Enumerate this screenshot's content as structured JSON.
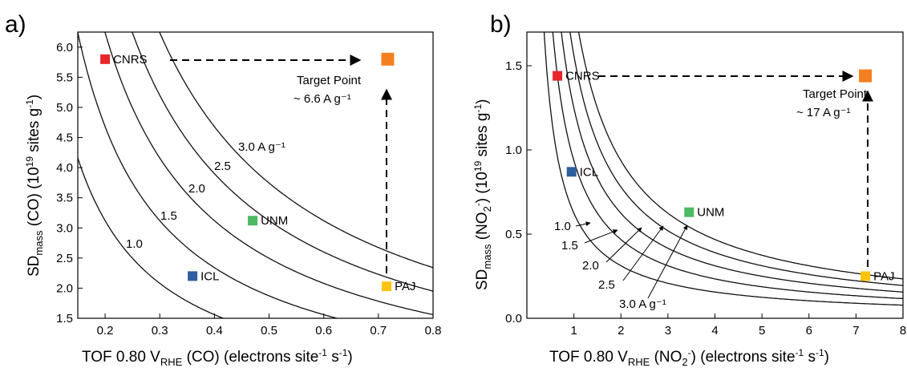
{
  "chart_data": [
    {
      "type": "scatter",
      "panel": "a)",
      "xlabel": "TOF 0.80 V_RHE (CO) (electrons site⁻¹ s⁻¹)",
      "ylabel": "SD_mass (CO) (10¹⁹ sites g⁻¹)",
      "xlim": [
        0.15,
        0.8
      ],
      "ylim": [
        1.5,
        6.25
      ],
      "x_ticks": [
        "0.2",
        "0.3",
        "0.4",
        "0.5",
        "0.6",
        "0.7",
        "0.8"
      ],
      "y_ticks": [
        "1.5",
        "2.0",
        "2.5",
        "3.0",
        "3.5",
        "4.0",
        "4.5",
        "5.0",
        "5.5",
        "6.0"
      ],
      "points": [
        {
          "label": "CNRS",
          "x": 0.2,
          "y": 5.8,
          "color": "#e8262a"
        },
        {
          "label": "UNM",
          "x": 0.47,
          "y": 3.12,
          "color": "#4cb963"
        },
        {
          "label": "ICL",
          "x": 0.36,
          "y": 2.2,
          "color": "#2f5f9e"
        },
        {
          "label": "PAJ",
          "x": 0.715,
          "y": 2.03,
          "color": "#ffc20e"
        },
        {
          "label": "Target Point",
          "x": 0.717,
          "y": 5.8,
          "color": "#f47f20"
        }
      ],
      "target_text": [
        "Target Point",
        "~ 6.6 A g⁻¹"
      ],
      "isolines": [
        {
          "label": "1.0",
          "k": 0.624
        },
        {
          "label": "1.5",
          "k": 0.936
        },
        {
          "label": "2.0",
          "k": 1.248
        },
        {
          "label": "2.5",
          "k": 1.56
        },
        {
          "label": "3.0 A g⁻¹",
          "k": 1.872
        }
      ]
    },
    {
      "type": "scatter",
      "panel": "b)",
      "xlabel": "TOF 0.80 V_RHE (NO₂⁻) (electrons site⁻¹ s⁻¹)",
      "ylabel": "SD_mass (NO₂⁻) (10¹⁹ sites g⁻¹)",
      "xlim": [
        0,
        8
      ],
      "ylim": [
        0,
        1.7
      ],
      "x_ticks": [
        "1",
        "2",
        "3",
        "4",
        "5",
        "6",
        "7",
        "8"
      ],
      "y_ticks": [
        "0.0",
        "0.5",
        "1.0",
        "1.5"
      ],
      "points": [
        {
          "label": "CNRS",
          "x": 0.65,
          "y": 1.44,
          "color": "#e8262a"
        },
        {
          "label": "ICL",
          "x": 0.95,
          "y": 0.87,
          "color": "#2f5f9e"
        },
        {
          "label": "UNM",
          "x": 3.45,
          "y": 0.63,
          "color": "#4cb963"
        },
        {
          "label": "PAJ",
          "x": 7.2,
          "y": 0.25,
          "color": "#ffc20e"
        },
        {
          "label": "Target Point",
          "x": 7.2,
          "y": 1.44,
          "color": "#f47f20"
        }
      ],
      "target_text": [
        "Target Point",
        "~ 17 A g⁻¹"
      ],
      "isolines": [
        {
          "label": "1.0",
          "k": 0.624
        },
        {
          "label": "1.5",
          "k": 0.936
        },
        {
          "label": "2.0",
          "k": 1.248
        },
        {
          "label": "2.5",
          "k": 1.56
        },
        {
          "label": "3.0 A g⁻¹",
          "k": 1.872
        }
      ]
    }
  ]
}
